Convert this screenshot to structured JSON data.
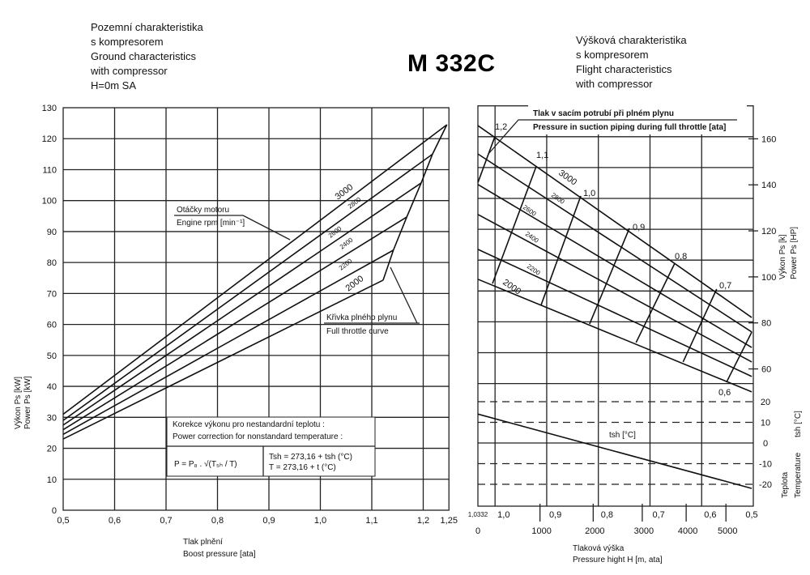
{
  "title": "M 332C",
  "left_title": [
    "Pozemní charakteristika",
    "s kompresorem",
    "Ground characteristics",
    "with compressor",
    "H=0m SA"
  ],
  "right_title": [
    "Výšková charakteristika",
    "s kompresorem",
    "Flight characteristics",
    "with compressor"
  ],
  "left_annotations": {
    "rpm_1": "Otáčky motoru",
    "rpm_2": "Engine rpm [min⁻¹]",
    "ft_1": "Křivka plného plynu",
    "ft_2": "Full throttle curve",
    "corr_1": "Korekce výkonu pro nestandardní teplotu :",
    "corr_2": "Power correction for nonstandard temperature :",
    "formula": "P = P₈ . √(T₅ₕ / T)",
    "tsh": "Tsh = 273,16 + tsh (°C)",
    "t": "T = 273,16 + t (°C)"
  },
  "right_annotations": {
    "press_1": "Tlak v sacím potrubí při plném plynu",
    "press_2": "Pressure in suction piping during full throttle [ata]",
    "tsh_curve": "tsh [°C]"
  },
  "chart_data": [
    {
      "type": "line",
      "title": "Pozemní charakteristika s kompresorem / Ground characteristics with compressor H=0m SA",
      "xlabel": [
        "Tlak plnění",
        "Boost pressure [ata]"
      ],
      "ylabel": [
        "Výkon Ps [kW]",
        "Power Ps [kW]"
      ],
      "xlim": [
        0.5,
        1.25
      ],
      "ylim": [
        0,
        130
      ],
      "grid": true,
      "x_ticks": [
        {
          "v": 0.5,
          "label": "0,5"
        },
        {
          "v": 0.6,
          "label": "0,6"
        },
        {
          "v": 0.7,
          "label": "0,7"
        },
        {
          "v": 0.8,
          "label": "0,8"
        },
        {
          "v": 0.9,
          "label": "0,9"
        },
        {
          "v": 1.0,
          "label": "1,0"
        },
        {
          "v": 1.1,
          "label": "1,1"
        },
        {
          "v": 1.2,
          "label": "1,2"
        },
        {
          "v": 1.25,
          "label": "1,25"
        }
      ],
      "y_ticks": [
        0,
        10,
        20,
        30,
        40,
        50,
        60,
        70,
        80,
        90,
        100,
        110,
        120,
        130
      ],
      "series": [
        {
          "name": "3000",
          "points": [
            [
              0.5,
              31
            ],
            [
              1.246,
              124.5
            ]
          ]
        },
        {
          "name": "2800",
          "points": [
            [
              0.5,
              29
            ],
            [
              1.218,
              115
            ]
          ]
        },
        {
          "name": "2600",
          "points": [
            [
              0.5,
              27.5
            ],
            [
              1.196,
              105.7
            ]
          ]
        },
        {
          "name": "2400",
          "points": [
            [
              0.5,
              26
            ],
            [
              1.168,
              94.7
            ]
          ]
        },
        {
          "name": "2200",
          "points": [
            [
              0.5,
              24.5
            ],
            [
              1.142,
              84
            ]
          ]
        },
        {
          "name": "2000",
          "points": [
            [
              0.5,
              23
            ],
            [
              1.122,
              74.3
            ]
          ]
        }
      ],
      "full_throttle_curve": [
        [
          1.122,
          74.3
        ],
        [
          1.142,
          84
        ],
        [
          1.168,
          94.7
        ],
        [
          1.196,
          105.7
        ],
        [
          1.218,
          115
        ],
        [
          1.246,
          124.5
        ]
      ]
    },
    {
      "type": "line",
      "title": "Výšková charakteristika s kompresorem / Flight characteristics with compressor",
      "xlabel": [
        "Tlaková výška",
        "Pressure hight H [m, ata]"
      ],
      "ylabel": [
        "Výkon Ps [k]",
        "Power Ps [HP]"
      ],
      "y2label": [
        "tsh [°C]",
        "Teplota",
        "Temperature"
      ],
      "xlim_ata": [
        1.0332,
        0.5
      ],
      "ylim_kW": [
        0,
        130
      ],
      "grid": true,
      "pressure_ticks": [
        {
          "v": 1.0332,
          "label": "1,0332"
        },
        {
          "v": 1.0,
          "label": "1,0"
        },
        {
          "v": 0.9,
          "label": "0,9"
        },
        {
          "v": 0.8,
          "label": "0,8"
        },
        {
          "v": 0.7,
          "label": "0,7"
        },
        {
          "v": 0.6,
          "label": "0,6"
        },
        {
          "v": 0.5,
          "label": "0,5"
        }
      ],
      "altitude_ticks": [
        {
          "H": "0",
          "p": 1.0332
        },
        {
          "H": "1000",
          "p": 0.913
        },
        {
          "H": "2000",
          "p": 0.81
        },
        {
          "H": "3000",
          "p": 0.715
        },
        {
          "H": "4000",
          "p": 0.63
        },
        {
          "H": "5000",
          "p": 0.553
        }
      ],
      "hp_ticks": [
        60,
        80,
        100,
        120,
        140,
        160
      ],
      "temp_ticks": [
        20,
        10,
        0,
        -10,
        -20
      ],
      "series": [
        {
          "name": "3000",
          "points": [
            [
              1.0332,
              123.6
            ],
            [
              0.503,
              61.4
            ]
          ]
        },
        {
          "name": "2800",
          "points": [
            [
              1.0332,
              114.4
            ],
            [
              0.503,
              56.7
            ]
          ]
        },
        {
          "name": "2600",
          "points": [
            [
              1.0332,
              104.5
            ],
            [
              0.503,
              51.7
            ]
          ]
        },
        {
          "name": "2400",
          "points": [
            [
              1.0332,
              94.8
            ],
            [
              0.503,
              47
            ]
          ]
        },
        {
          "name": "2200",
          "points": [
            [
              1.0332,
              83.5
            ],
            [
              0.503,
              42.3
            ]
          ]
        },
        {
          "name": "2000",
          "points": [
            [
              1.0332,
              73.8
            ],
            [
              0.503,
              37.3
            ]
          ]
        }
      ],
      "suction_pressure_lines": [
        {
          "label": "1,2",
          "points": [
            [
              1.0,
              120.2
            ],
            [
              1.033,
              105.2
            ]
          ]
        },
        {
          "label": "1,1",
          "points": [
            [
              0.92,
              110.5
            ],
            [
              1.005,
              72.4
            ]
          ]
        },
        {
          "label": "1,0",
          "points": [
            [
              0.834,
              100.8
            ],
            [
              0.911,
              65.4
            ]
          ]
        },
        {
          "label": "0,9",
          "points": [
            [
              0.74,
              90.3
            ],
            [
              0.817,
              59.3
            ]
          ]
        },
        {
          "label": "0,8",
          "points": [
            [
              0.652,
              79
            ],
            [
              0.727,
              53.3
            ]
          ]
        },
        {
          "label": "0,7",
          "points": [
            [
              0.571,
              70.6
            ],
            [
              0.636,
              47
            ]
          ]
        },
        {
          "label": "0,6",
          "points": [
            [
              0.503,
              56.7
            ],
            [
              0.552,
              40.4
            ]
          ]
        }
      ],
      "temperature_curve": {
        "name": "tsh [°C]",
        "points": [
          [
            1.0332,
            14
          ],
          [
            0.503,
            -22
          ]
        ]
      }
    }
  ]
}
